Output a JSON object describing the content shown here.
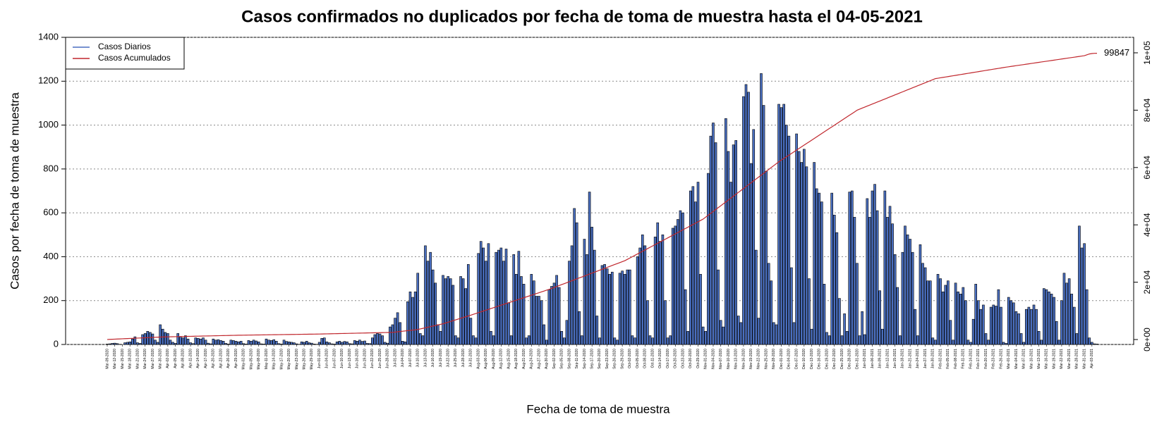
{
  "chart_data": {
    "type": "bar",
    "title": "Casos confirmados no duplicados por fecha de toma de muestra hasta el 04-05-2021",
    "x_label": "Fecha de toma de muestra",
    "y_label": "Casos por fecha de toma de muestra",
    "ylim": [
      0,
      1400
    ],
    "yticks": [
      0,
      200,
      400,
      600,
      800,
      1000,
      1200,
      1400
    ],
    "y2lim": [
      -1720,
      105400
    ],
    "y2ticks": [
      {
        "value": 0,
        "label": "0e+00"
      },
      {
        "value": 20000,
        "label": "2e+04"
      },
      {
        "value": 40000,
        "label": "4e+04"
      },
      {
        "value": 60000,
        "label": "6e+04"
      },
      {
        "value": 80000,
        "label": "8e+04"
      },
      {
        "value": 100000,
        "label": "1e+05"
      }
    ],
    "grid": true,
    "legend": "top-left",
    "categories": [
      "Mar-09-2020",
      null,
      null,
      "Mar-12-2020",
      null,
      null,
      "Mar-15-2020",
      null,
      null,
      "Mar-18-2020",
      null,
      null,
      "Mar-21-2020",
      null,
      null,
      "Mar-24-2020",
      null,
      null,
      "Mar-27-2020",
      null,
      null,
      "Mar-30-2020",
      null,
      null,
      "Apr-02-2020",
      null,
      null,
      "Apr-05-2020",
      null,
      null,
      "Apr-08-2020",
      null,
      null,
      "Apr-11-2020",
      null,
      null,
      "Apr-14-2020",
      null,
      null,
      "Apr-17-2020",
      null,
      null,
      "Apr-20-2020",
      null,
      null,
      "Apr-23-2020",
      null,
      null,
      "Apr-26-2020",
      null,
      null,
      "Apr-29-2020",
      null,
      null,
      "May-02-2020",
      null,
      null,
      "May-05-2020",
      null,
      null,
      "May-08-2020",
      null,
      null,
      "May-11-2020",
      null,
      null,
      "May-14-2020",
      null,
      null,
      "May-17-2020",
      null,
      null,
      "May-20-2020",
      null,
      null,
      "May-23-2020",
      null,
      null,
      "May-26-2020",
      null,
      null,
      "May-29-2020",
      null,
      null,
      "Jun-01-2020",
      null,
      null,
      "Jun-04-2020",
      null,
      null,
      "Jun-07-2020",
      null,
      null,
      "Jun-10-2020",
      null,
      null,
      "Jun-13-2020",
      null,
      null,
      "Jun-16-2020",
      null,
      null,
      "Jun-19-2020",
      null,
      null,
      "Jun-22-2020",
      null,
      null,
      "Jun-25-2020",
      null,
      null,
      "Jun-28-2020",
      null,
      null,
      "Jul-01-2020",
      null,
      null,
      "Jul-04-2020",
      null,
      null,
      "Jul-07-2020",
      null,
      null,
      "Jul-10-2020",
      null,
      null,
      "Jul-13-2020",
      null,
      null,
      "Jul-16-2020",
      null,
      null,
      "Jul-19-2020",
      null,
      null,
      "Jul-22-2020",
      null,
      null,
      "Jul-25-2020",
      null,
      null,
      "Jul-28-2020",
      null,
      null,
      "Jul-31-2020",
      null,
      null,
      "Aug-03-2020",
      null,
      null,
      "Aug-06-2020",
      null,
      null,
      "Aug-09-2020",
      null,
      null,
      "Aug-12-2020",
      null,
      null,
      "Aug-15-2020",
      null,
      null,
      "Aug-18-2020",
      null,
      null,
      "Aug-21-2020",
      null,
      null,
      "Aug-24-2020",
      null,
      null,
      "Aug-27-2020",
      null,
      null,
      "Aug-30-2020",
      null,
      null,
      "Sep-02-2020",
      null,
      null,
      "Sep-05-2020",
      null,
      null,
      "Sep-08-2020",
      null,
      null,
      "Sep-11-2020",
      null,
      null,
      "Sep-14-2020",
      null,
      null,
      "Sep-17-2020",
      null,
      null,
      "Sep-20-2020",
      null,
      null,
      "Sep-23-2020",
      null,
      null,
      "Sep-26-2020",
      null,
      null,
      "Sep-29-2020",
      null,
      null,
      "Oct-02-2020",
      null,
      null,
      "Oct-05-2020",
      null,
      null,
      "Oct-08-2020",
      null,
      null,
      "Oct-11-2020",
      null,
      null,
      "Oct-14-2020",
      null,
      null,
      "Oct-17-2020",
      null,
      null,
      "Oct-20-2020",
      null,
      null,
      "Oct-23-2020",
      null,
      null,
      "Oct-26-2020",
      null,
      null,
      "Oct-29-2020",
      null,
      null,
      "Nov-01-2020",
      null,
      null,
      "Nov-04-2020",
      null,
      null,
      "Nov-07-2020",
      null,
      null,
      "Nov-10-2020",
      null,
      null,
      "Nov-13-2020",
      null,
      null,
      "Nov-16-2020",
      null,
      null,
      "Nov-19-2020",
      null,
      null,
      "Nov-22-2020",
      null,
      null,
      "Nov-25-2020",
      null,
      null,
      "Nov-28-2020",
      null,
      null,
      "Dec-01-2020",
      null,
      null,
      "Dec-04-2020",
      null,
      null,
      "Dec-07-2020",
      null,
      null,
      "Dec-10-2020",
      null,
      null,
      "Dec-13-2020",
      null,
      null,
      "Dec-16-2020",
      null,
      null,
      "Dec-19-2020",
      null,
      null,
      "Dec-22-2020",
      null,
      null,
      "Dec-25-2020",
      null,
      null,
      "Dec-28-2020",
      null,
      null,
      "Dec-31-2020",
      null,
      null,
      "Jan-03-2021",
      null,
      null,
      "Jan-06-2021",
      null,
      null,
      "Jan-09-2021",
      null,
      null,
      "Jan-12-2021",
      null,
      null,
      "Jan-15-2021",
      null,
      null,
      "Jan-18-2021",
      null,
      null,
      "Jan-21-2021",
      null,
      null,
      "Jan-24-2021",
      null,
      null,
      "Jan-27-2021",
      null,
      null,
      "Jan-30-2021",
      null,
      null,
      "Feb-02-2021",
      null,
      null,
      "Feb-05-2021",
      null,
      null,
      "Feb-08-2021",
      null,
      null,
      "Feb-11-2021",
      null,
      null,
      "Feb-14-2021",
      null,
      null,
      "Feb-17-2021",
      null,
      null,
      "Feb-20-2021",
      null,
      null,
      "Feb-23-2021",
      null,
      null,
      "Feb-26-2021",
      null,
      null,
      "Mar-01-2021",
      null,
      null,
      "Mar-04-2021",
      null,
      null,
      "Mar-07-2021",
      null,
      null,
      "Mar-10-2021",
      null,
      null,
      "Mar-13-2021",
      null,
      null,
      "Mar-16-2021",
      null,
      null,
      "Mar-19-2021",
      null,
      null,
      "Mar-22-2021",
      null,
      null,
      "Mar-25-2021",
      null,
      null,
      "Mar-28-2021",
      null,
      null,
      "Mar-31-2021",
      null,
      null,
      "Apr-03-2021",
      null,
      null
    ],
    "series": [
      {
        "name": "Casos Diarios",
        "color": "#4a6fc0",
        "values": [
          2,
          3,
          5,
          6,
          4,
          1,
          0,
          8,
          10,
          12,
          25,
          35,
          8,
          5,
          45,
          50,
          60,
          55,
          48,
          20,
          10,
          90,
          70,
          55,
          50,
          20,
          10,
          5,
          50,
          35,
          30,
          40,
          25,
          8,
          4,
          30,
          28,
          25,
          30,
          20,
          6,
          3,
          25,
          20,
          22,
          18,
          15,
          5,
          2,
          20,
          18,
          15,
          12,
          15,
          4,
          2,
          18,
          15,
          20,
          16,
          12,
          3,
          2,
          25,
          20,
          18,
          22,
          15,
          4,
          2,
          20,
          14,
          12,
          10,
          8,
          3,
          1,
          12,
          10,
          15,
          8,
          6,
          2,
          1,
          10,
          28,
          30,
          12,
          8,
          3,
          2,
          12,
          15,
          10,
          14,
          12,
          4,
          3,
          18,
          15,
          20,
          14,
          16,
          5,
          4,
          30,
          45,
          50,
          48,
          40,
          10,
          6,
          80,
          90,
          120,
          145,
          100,
          15,
          12,
          195,
          240,
          215,
          240,
          325,
          50,
          40,
          450,
          380,
          420,
          340,
          280,
          90,
          60,
          315,
          300,
          310,
          300,
          270,
          40,
          30,
          310,
          300,
          255,
          365,
          120,
          40,
          30,
          415,
          470,
          440,
          380,
          460,
          60,
          40,
          420,
          430,
          440,
          380,
          435,
          190,
          40,
          410,
          320,
          425,
          310,
          275,
          30,
          40,
          320,
          290,
          220,
          220,
          200,
          90,
          20,
          250,
          265,
          280,
          315,
          260,
          60,
          30,
          110,
          380,
          450,
          620,
          555,
          150,
          40,
          480,
          410,
          695,
          535,
          430,
          130,
          30,
          360,
          365,
          345,
          320,
          330,
          30,
          20,
          325,
          335,
          320,
          340,
          340,
          40,
          30,
          400,
          440,
          500,
          450,
          200,
          40,
          30,
          490,
          555,
          470,
          500,
          200,
          30,
          40,
          530,
          540,
          570,
          610,
          600,
          250,
          60,
          700,
          720,
          650,
          740,
          320,
          80,
          60,
          780,
          950,
          1010,
          920,
          340,
          110,
          80,
          1030,
          880,
          740,
          910,
          930,
          130,
          100,
          1130,
          1185,
          1150,
          825,
          980,
          430,
          120,
          1235,
          1090,
          790,
          370,
          290,
          100,
          90,
          1095,
          1080,
          1095,
          1000,
          950,
          350,
          100,
          960,
          880,
          830,
          890,
          810,
          300,
          70,
          830,
          710,
          690,
          650,
          275,
          55,
          40,
          690,
          590,
          510,
          210,
          40,
          140,
          60,
          695,
          700,
          580,
          370,
          40,
          150,
          45,
          665,
          580,
          700,
          730,
          610,
          245,
          70,
          700,
          580,
          630,
          550,
          410,
          260,
          40,
          420,
          540,
          500,
          480,
          420,
          160,
          40,
          455,
          370,
          350,
          290,
          290,
          30,
          20,
          320,
          300,
          240,
          270,
          290,
          110,
          20,
          280,
          240,
          230,
          260,
          200,
          20,
          10,
          115,
          275,
          200,
          160,
          180,
          50,
          20,
          170,
          180,
          175,
          250,
          170,
          10,
          5,
          215,
          200,
          190,
          150,
          140,
          50,
          10,
          160,
          170,
          160,
          180,
          160,
          60,
          20,
          255,
          250,
          240,
          230,
          215,
          105,
          20,
          200,
          325,
          280,
          300,
          230,
          170,
          50,
          540,
          440,
          460,
          250,
          30,
          10,
          3,
          2
        ]
      },
      {
        "name": "Casos Acumulados",
        "color": "#c0272d",
        "axis": "y2",
        "values": [
          20,
          60,
          100,
          140,
          180,
          220,
          260,
          300,
          340,
          380,
          420,
          460,
          500,
          540,
          580,
          620,
          660,
          700,
          740,
          780,
          820,
          860,
          900,
          920,
          940,
          960,
          980,
          1000,
          1020,
          1040,
          1060,
          1080,
          1100,
          1120,
          1140,
          1160,
          1180,
          1200,
          1220,
          1240,
          1260,
          1280,
          1300,
          1320,
          1340,
          1360,
          1380,
          1400,
          1420,
          1440,
          1460,
          1480,
          1500,
          1513,
          1526,
          1539,
          1552,
          1565,
          1578,
          1591,
          1604,
          1617,
          1630,
          1643,
          1656,
          1669,
          1682,
          1695,
          1708,
          1721,
          1734,
          1747,
          1760,
          1773,
          1786,
          1799,
          1812,
          1825,
          1838,
          1851,
          1864,
          1877,
          1890,
          1900,
          1920,
          1940,
          1960,
          1980,
          2000,
          2020,
          2040,
          2060,
          2080,
          2100,
          2120,
          2140,
          2160,
          2180,
          2200,
          2220,
          2240,
          2260,
          2280,
          2300,
          2320,
          2340,
          2360,
          2380,
          2400,
          2420,
          2440,
          2460,
          2480,
          2500,
          2600,
          2700,
          2800,
          2900,
          3000,
          3100,
          3200,
          3300,
          3400,
          3500,
          3700,
          3900,
          4100,
          4300,
          4500,
          4700,
          4900,
          5100,
          5300,
          5500,
          5773,
          6045,
          6318,
          6591,
          6864,
          7136,
          7409,
          7682,
          7955,
          8227,
          8500,
          8790,
          9080,
          9370,
          9660,
          9950,
          10240,
          10530,
          10820,
          11110,
          11400,
          11690,
          11980,
          12270,
          12560,
          12850,
          13140,
          13430,
          13720,
          14010,
          14300,
          14590,
          14880,
          15170,
          15460,
          15750,
          16040,
          16330,
          16620,
          16910,
          17200,
          17500,
          17830,
          18170,
          18500,
          18830,
          19170,
          19500,
          19830,
          20170,
          20500,
          20830,
          21170,
          21500,
          21830,
          22170,
          22500,
          22830,
          23170,
          23500,
          23830,
          24170,
          24500,
          24830,
          25170,
          25500,
          25830,
          26170,
          26500,
          26830,
          27170,
          27500,
          27970,
          28440,
          28900,
          29370,
          29840,
          30310,
          30770,
          31240,
          31710,
          32180,
          32650,
          33110,
          33580,
          34050,
          34520,
          34980,
          35450,
          35920,
          36390,
          36860,
          37320,
          37790,
          38260,
          38730,
          39190,
          39660,
          40130,
          40600,
          41060,
          41530,
          42000,
          42670,
          43330,
          44000,
          44670,
          45330,
          46000,
          46670,
          47330,
          48000,
          48670,
          49330,
          50000,
          50670,
          51330,
          52000,
          52670,
          53330,
          54000,
          54670,
          55330,
          56000,
          56670,
          57330,
          58000,
          58670,
          59330,
          60000,
          60670,
          61330,
          62000,
          62580,
          63160,
          63740,
          64320,
          64900,
          65480,
          66060,
          66640,
          67220,
          67800,
          68380,
          68960,
          69540,
          70120,
          70700,
          71280,
          71860,
          72440,
          73020,
          73600,
          74180,
          74760,
          75340,
          75920,
          76500,
          77080,
          77660,
          78240,
          78820,
          79400,
          80000,
          80350,
          80710,
          81060,
          81420,
          81770,
          82130,
          82480,
          82840,
          83190,
          83550,
          83900,
          84260,
          84610,
          84970,
          85320,
          85680,
          86030,
          86390,
          86740,
          87100,
          87450,
          87810,
          88160,
          88520,
          88870,
          89230,
          89580,
          89940,
          90290,
          90650,
          91000,
          91140,
          91290,
          91430,
          91570,
          91710,
          91860,
          92000,
          92140,
          92290,
          92430,
          92570,
          92710,
          92860,
          93000,
          93140,
          93290,
          93430,
          93570,
          93710,
          93860,
          94000,
          94140,
          94290,
          94430,
          94570,
          94710,
          94860,
          95000,
          95130,
          95260,
          95390,
          95520,
          95650,
          95770,
          95900,
          96030,
          96160,
          96290,
          96420,
          96550,
          96680,
          96810,
          96940,
          97060,
          97190,
          97320,
          97450,
          97580,
          97710,
          97840,
          97970,
          98100,
          98230,
          98350,
          98480,
          98610,
          98740,
          98870,
          99000,
          99300,
          99600,
          99750,
          99820,
          99847
        ]
      }
    ]
  }
}
